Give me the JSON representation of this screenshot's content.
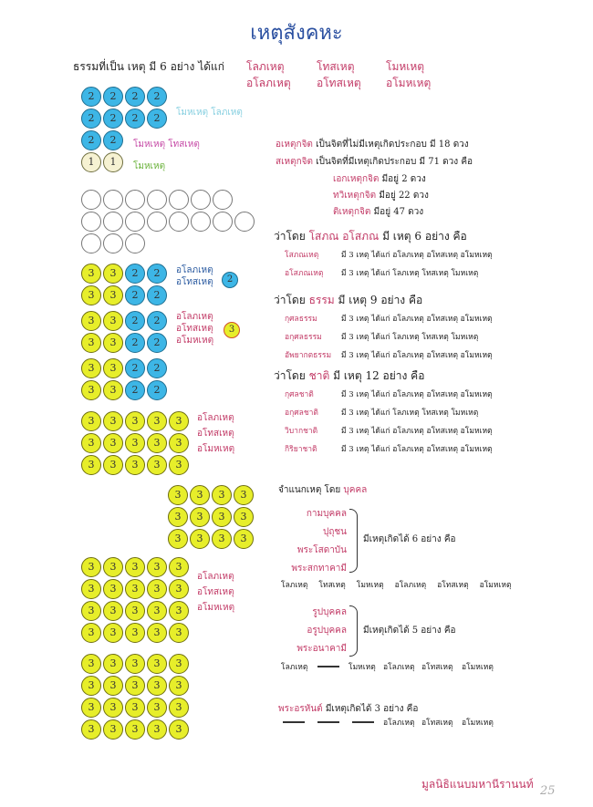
{
  "title": "เหตุสังคหะ",
  "intro": {
    "text": "ธรรมที่เป็น เหตุ มี 6 อย่าง  ได้แก่",
    "hetu_row1": [
      "โลภเหตุ",
      "โทสเหตุ",
      "โมหเหตุ"
    ],
    "hetu_row2": [
      "อโลภเหตุ",
      "อโทสเหตุ",
      "อโมหเหตุ"
    ]
  },
  "colors": {
    "blue_circle": "#3db6e6",
    "yellow_circle": "#e7ee2a",
    "pale_circle": "#f6f2d2",
    "accent_pink": "#c23a66",
    "title_blue": "#2a4fa0"
  },
  "circle_groups": [
    {
      "rows": [
        [
          2,
          2,
          2,
          2
        ],
        [
          2,
          2,
          2,
          2
        ],
        [
          2,
          2
        ],
        [
          1,
          1
        ]
      ],
      "labels": [
        {
          "text": "โมหเหตุ  โลภเหตุ"
        },
        {
          "text": "โมหเหตุ  โทสเหตุ"
        },
        {
          "text": "โมหเหตุ"
        }
      ]
    },
    {
      "rows": [
        [
          0,
          0,
          0,
          0,
          0,
          0,
          0
        ],
        [
          0,
          0,
          0,
          0,
          0,
          0,
          0,
          0
        ],
        [
          0,
          0,
          0
        ]
      ]
    },
    {
      "rows": [
        [
          3,
          3,
          2,
          2
        ],
        [
          3,
          3,
          2,
          2
        ]
      ],
      "labels": [
        "อโลภเหตุ",
        "อโทสเหตุ"
      ],
      "badge": "2"
    },
    {
      "rows": [
        [
          3,
          3,
          2,
          2
        ],
        [
          3,
          3,
          2,
          2
        ]
      ],
      "labels": [
        "อโลภเหตุ",
        "อโทสเหตุ",
        "อโมหเหตุ"
      ],
      "badge": "3"
    },
    {
      "rows": [
        [
          3,
          3,
          2,
          2
        ],
        [
          3,
          3,
          2,
          2
        ]
      ]
    },
    {
      "rows": [
        [
          3,
          3,
          3,
          3,
          3
        ],
        [
          3,
          3,
          3,
          3,
          3
        ],
        [
          3,
          3,
          3,
          3,
          3
        ]
      ],
      "labels": [
        "อโลภเหตุ",
        "อโทสเหตุ",
        "อโมหเหตุ"
      ]
    },
    {
      "rows": [
        [
          3,
          3,
          3,
          3
        ],
        [
          3,
          3,
          3,
          3
        ],
        [
          3,
          3,
          3,
          3
        ]
      ]
    },
    {
      "rows": [
        [
          3,
          3,
          3,
          3,
          3
        ],
        [
          3,
          3,
          3,
          3,
          3
        ],
        [
          3,
          3,
          3,
          3,
          3
        ],
        [
          3,
          3,
          3,
          3,
          3
        ]
      ],
      "labels": [
        "อโลภเหตุ",
        "อโทสเหตุ",
        "อโมหเหตุ"
      ]
    },
    {
      "rows": [
        [
          3,
          3,
          3,
          3,
          3
        ],
        [
          3,
          3,
          3,
          3,
          3
        ],
        [
          3,
          3,
          3,
          3,
          3
        ],
        [
          3,
          3,
          3,
          3,
          3
        ]
      ]
    }
  ],
  "citta": {
    "ahetuka": {
      "term": "อเหตุกจิต",
      "desc": "เป็นจิตที่ไม่มีเหตุเกิดประกอบ มี 18 ดวง"
    },
    "sahetuka": {
      "term": "สเหตุกจิต",
      "desc": "เป็นจิตที่มีเหตุเกิดประกอบ มี 71 ดวง คือ"
    },
    "sub": [
      {
        "term": "เอกเหตุกจิต",
        "desc": "มีอยู่   2 ดวง"
      },
      {
        "term": "ทวิเหตุกจิต",
        "desc": "มีอยู่  22 ดวง"
      },
      {
        "term": "ติเหตุกจิต",
        "desc": "มีอยู่  47 ดวง"
      }
    ]
  },
  "sections": [
    {
      "pre": "ว่าโดย",
      "key": "โสภณ อโสภณ",
      "post": "มี เหตุ 6 อย่าง คือ",
      "items": [
        {
          "term": "โสภณเหตุ",
          "desc": "มี 3 เหตุ ได้แก่  อโลภเหตุ  อโทสเหตุ  อโมหเหตุ"
        },
        {
          "term": "อโสภณเหตุ",
          "desc": "มี 3 เหตุ ได้แก่  โลภเหตุ    โทสเหตุ    โมหเหตุ"
        }
      ]
    },
    {
      "pre": "ว่าโดย",
      "key": "ธรรม",
      "post": "มี เหตุ 9 อย่าง คือ",
      "items": [
        {
          "term": "กุศลธรรม",
          "desc": "มี 3 เหตุ ได้แก่  อโลภเหตุ  อโทสเหตุ  อโมหเหตุ"
        },
        {
          "term": "อกุศลธรรม",
          "desc": "มี 3 เหตุ ได้แก่  โลภเหตุ    โทสเหตุ    โมหเหตุ"
        },
        {
          "term": "อัพยากตธรรม",
          "desc": "มี 3 เหตุ ได้แก่  อโลภเหตุ  อโทสเหตุ  อโมหเหตุ"
        }
      ]
    },
    {
      "pre": "ว่าโดย",
      "key": "ชาติ",
      "post": "มี เหตุ 12 อย่าง คือ",
      "items": [
        {
          "term": "กุศลชาติ",
          "desc": "มี 3 เหตุ ได้แก่  อโลภเหตุ  อโทสเหตุ  อโมหเหตุ"
        },
        {
          "term": "อกุศลชาติ",
          "desc": "มี 3 เหตุ ได้แก่  โลภเหตุ    โทสเหตุ    โมหเหตุ"
        },
        {
          "term": "วิบากชาติ",
          "desc": "มี 3 เหตุ ได้แก่  อโลภเหตุ  อโทสเหตุ  อโมหเหตุ"
        },
        {
          "term": "กิริยาชาติ",
          "desc": "มี 3 เหตุ ได้แก่  อโลภเหตุ  อโทสเหตุ  อโมหเหตุ"
        }
      ]
    }
  ],
  "puggala": {
    "heading": "จำแนกเหตุ โดย",
    "heading_key": "บุคคล",
    "group1": {
      "persons": [
        "กามบุคคล",
        "ปุถุชน",
        "พระโสดาบัน",
        "พระสกทาคามี"
      ],
      "desc": "มีเหตุเกิดได้ 6 อย่าง คือ",
      "hetus": [
        "โลภเหตุ",
        "โทสเหตุ",
        "โมหเหตุ",
        "อโลภเหตุ",
        "อโทสเหตุ",
        "อโมหเหตุ"
      ]
    },
    "group2": {
      "persons": [
        "รูปบุคคล",
        "อรูปบุคคล",
        "พระอนาคามี"
      ],
      "desc": "มีเหตุเกิดได้ 5 อย่าง คือ",
      "hetus": [
        "โลภเหตุ",
        "โมหเหตุ",
        "อโลภเหตุ",
        "อโทสเหตุ",
        "อโมหเหตุ"
      ]
    },
    "group3": {
      "person": "พระอรหันต์",
      "desc": "มีเหตุเกิดได้ 3 อย่าง คือ",
      "hetus": [
        "อโลภเหตุ",
        "อโทสเหตุ",
        "อโมหเหตุ"
      ]
    }
  },
  "footer": {
    "publisher": "มูลนิธิแนบมหานีรานนท์",
    "page_number": "25"
  }
}
